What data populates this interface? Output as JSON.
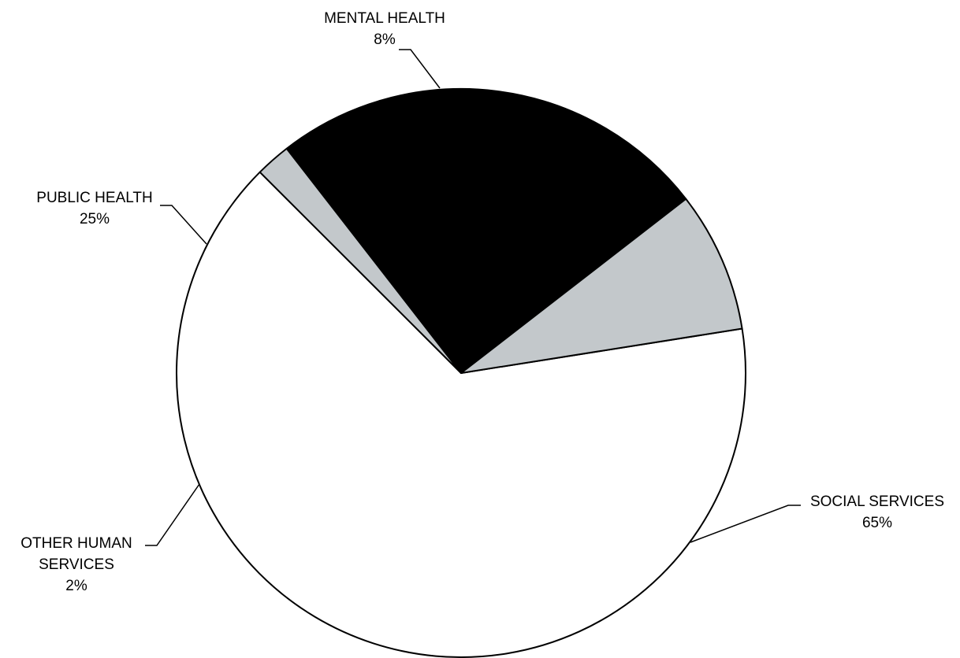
{
  "chart_data": {
    "type": "pie",
    "slices": [
      {
        "key": "social",
        "name_lines": [
          "SOCIAL SERVICES"
        ],
        "value": 65,
        "percent_label": "65%",
        "color": "#ffffff"
      },
      {
        "key": "other",
        "name_lines": [
          "OTHER HUMAN",
          "SERVICES"
        ],
        "value": 2,
        "percent_label": "2%",
        "color": "#c3c8cb"
      },
      {
        "key": "public",
        "name_lines": [
          "PUBLIC HEALTH"
        ],
        "value": 25,
        "percent_label": "25%",
        "color": "#000000"
      },
      {
        "key": "mental",
        "name_lines": [
          "MENTAL HEALTH"
        ],
        "value": 8,
        "percent_label": "8%",
        "color": "#c3c8cb"
      }
    ],
    "title": "",
    "legend": "none",
    "labels": "outside with leader lines"
  }
}
